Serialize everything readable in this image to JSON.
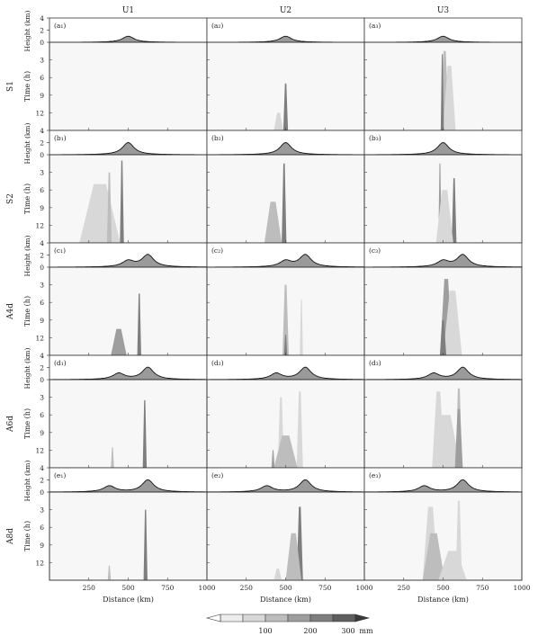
{
  "chart_data": {
    "type": "heatmap",
    "description_grid": "5 rows (experiments) x 3 columns (wind profiles); each cell = terrain height strip + Hovmoller precipitation panel",
    "columns": [
      "U1",
      "U2",
      "U3"
    ],
    "rows": [
      {
        "name": "S1",
        "panel_labels": [
          "(a₁)",
          "(a₂)",
          "(a₃)"
        ],
        "mountains": [
          {
            "center": 500,
            "height": 1.0
          }
        ]
      },
      {
        "name": "S2",
        "panel_labels": [
          "(b₁)",
          "(b₂)",
          "(b₃)"
        ],
        "mountains": [
          {
            "center": 500,
            "height": 2.0
          }
        ]
      },
      {
        "name": "A4d",
        "panel_labels": [
          "(c₁)",
          "(c₂)",
          "(c₃)"
        ],
        "mountains": [
          {
            "center": 500,
            "height": 1.0
          },
          {
            "center": 625,
            "height": 2.0
          }
        ]
      },
      {
        "name": "A6d",
        "panel_labels": [
          "(d₁)",
          "(d₂)",
          "(d₃)"
        ],
        "mountains": [
          {
            "center": 440,
            "height": 1.0
          },
          {
            "center": 625,
            "height": 2.0
          }
        ]
      },
      {
        "name": "A8d",
        "panel_labels": [
          "(e₁)",
          "(e₂)",
          "(e₃)"
        ],
        "mountains": [
          {
            "center": 380,
            "height": 1.0
          },
          {
            "center": 625,
            "height": 2.0
          }
        ]
      }
    ],
    "terrain_ylabel": "Height (km)",
    "terrain_yticks": [
      "4",
      "2",
      "0"
    ],
    "terrain_ylim": [
      0,
      4
    ],
    "time_ylabel": "Time (h)",
    "time_yticks": [
      "3",
      "6",
      "9",
      "12"
    ],
    "time_ylim": [
      0,
      15
    ],
    "xlabel": "Distance (km)",
    "xticks": [
      "250",
      "500",
      "750",
      "1000"
    ],
    "xlim": [
      0,
      1000
    ],
    "colorbar": {
      "levels": [
        {
          "value": 50,
          "color": "#ececec"
        },
        {
          "value": 100,
          "color": "#d8d8d8"
        },
        {
          "value": 150,
          "color": "#bdbdbd"
        },
        {
          "value": 200,
          "color": "#9e9e9e"
        },
        {
          "value": 250,
          "color": "#7e7e7e"
        },
        {
          "value": 300,
          "color": "#5e5e5e"
        }
      ],
      "tick_labels": [
        "100",
        "200",
        "300"
      ],
      "unit": "mm"
    },
    "precip_features": [
      [
        [],
        [
          {
            "x": 500,
            "w": 30,
            "t0": 7,
            "level": 4
          },
          {
            "x": 455,
            "w": 60,
            "t0": 12,
            "level": 1
          }
        ],
        [
          {
            "x": 510,
            "w": 50,
            "t0": 1.5,
            "level": 2
          },
          {
            "x": 540,
            "w": 80,
            "t0": 4,
            "level": 1
          },
          {
            "x": 495,
            "w": 20,
            "t0": 2,
            "level": 4
          }
        ]
      ],
      [
        [
          {
            "x": 460,
            "w": 25,
            "t0": 1,
            "level": 4
          },
          {
            "x": 320,
            "w": 260,
            "t0": 5,
            "level": 1
          },
          {
            "x": 380,
            "w": 30,
            "t0": 3,
            "level": 2
          }
        ],
        [
          {
            "x": 490,
            "w": 30,
            "t0": 1.5,
            "level": 4
          },
          {
            "x": 420,
            "w": 110,
            "t0": 8,
            "level": 2
          }
        ],
        [
          {
            "x": 480,
            "w": 20,
            "t0": 1.5,
            "level": 3
          },
          {
            "x": 570,
            "w": 30,
            "t0": 4,
            "level": 4
          },
          {
            "x": 510,
            "w": 110,
            "t0": 6,
            "level": 1
          }
        ]
      ],
      [
        [
          {
            "x": 570,
            "w": 25,
            "t0": 4.5,
            "level": 4
          },
          {
            "x": 440,
            "w": 100,
            "t0": 10.5,
            "level": 3
          }
        ],
        [
          {
            "x": 500,
            "w": 40,
            "t0": 3,
            "level": 2
          },
          {
            "x": 500,
            "w": 20,
            "t0": 11.5,
            "level": 4
          },
          {
            "x": 600,
            "w": 20,
            "t0": 5.5,
            "level": 1
          }
        ],
        [
          {
            "x": 520,
            "w": 80,
            "t0": 2,
            "level": 3
          },
          {
            "x": 560,
            "w": 120,
            "t0": 4,
            "level": 1
          },
          {
            "x": 500,
            "w": 40,
            "t0": 9,
            "level": 4
          }
        ]
      ],
      [
        [
          {
            "x": 605,
            "w": 25,
            "t0": 3.5,
            "level": 4
          },
          {
            "x": 400,
            "w": 20,
            "t0": 11.5,
            "level": 2
          }
        ],
        [
          {
            "x": 470,
            "w": 40,
            "t0": 3,
            "level": 1
          },
          {
            "x": 590,
            "w": 40,
            "t0": 2,
            "level": 1
          },
          {
            "x": 500,
            "w": 150,
            "t0": 9.5,
            "level": 2
          },
          {
            "x": 420,
            "w": 20,
            "t0": 12,
            "level": 3
          }
        ],
        [
          {
            "x": 470,
            "w": 80,
            "t0": 2,
            "level": 1
          },
          {
            "x": 600,
            "w": 40,
            "t0": 1.5,
            "level": 2
          },
          {
            "x": 520,
            "w": 180,
            "t0": 6,
            "level": 1
          },
          {
            "x": 600,
            "w": 50,
            "t0": 5,
            "level": 3
          }
        ]
      ],
      [
        [
          {
            "x": 610,
            "w": 25,
            "t0": 3,
            "level": 4
          },
          {
            "x": 380,
            "w": 20,
            "t0": 12.5,
            "level": 2
          }
        ],
        [
          {
            "x": 590,
            "w": 40,
            "t0": 2.5,
            "level": 4
          },
          {
            "x": 550,
            "w": 100,
            "t0": 7,
            "level": 2
          },
          {
            "x": 450,
            "w": 50,
            "t0": 13,
            "level": 1
          }
        ],
        [
          {
            "x": 420,
            "w": 100,
            "t0": 2.5,
            "level": 1
          },
          {
            "x": 600,
            "w": 40,
            "t0": 1.5,
            "level": 1
          },
          {
            "x": 440,
            "w": 140,
            "t0": 7,
            "level": 2
          },
          {
            "x": 560,
            "w": 180,
            "t0": 10,
            "level": 1
          }
        ]
      ]
    ]
  }
}
